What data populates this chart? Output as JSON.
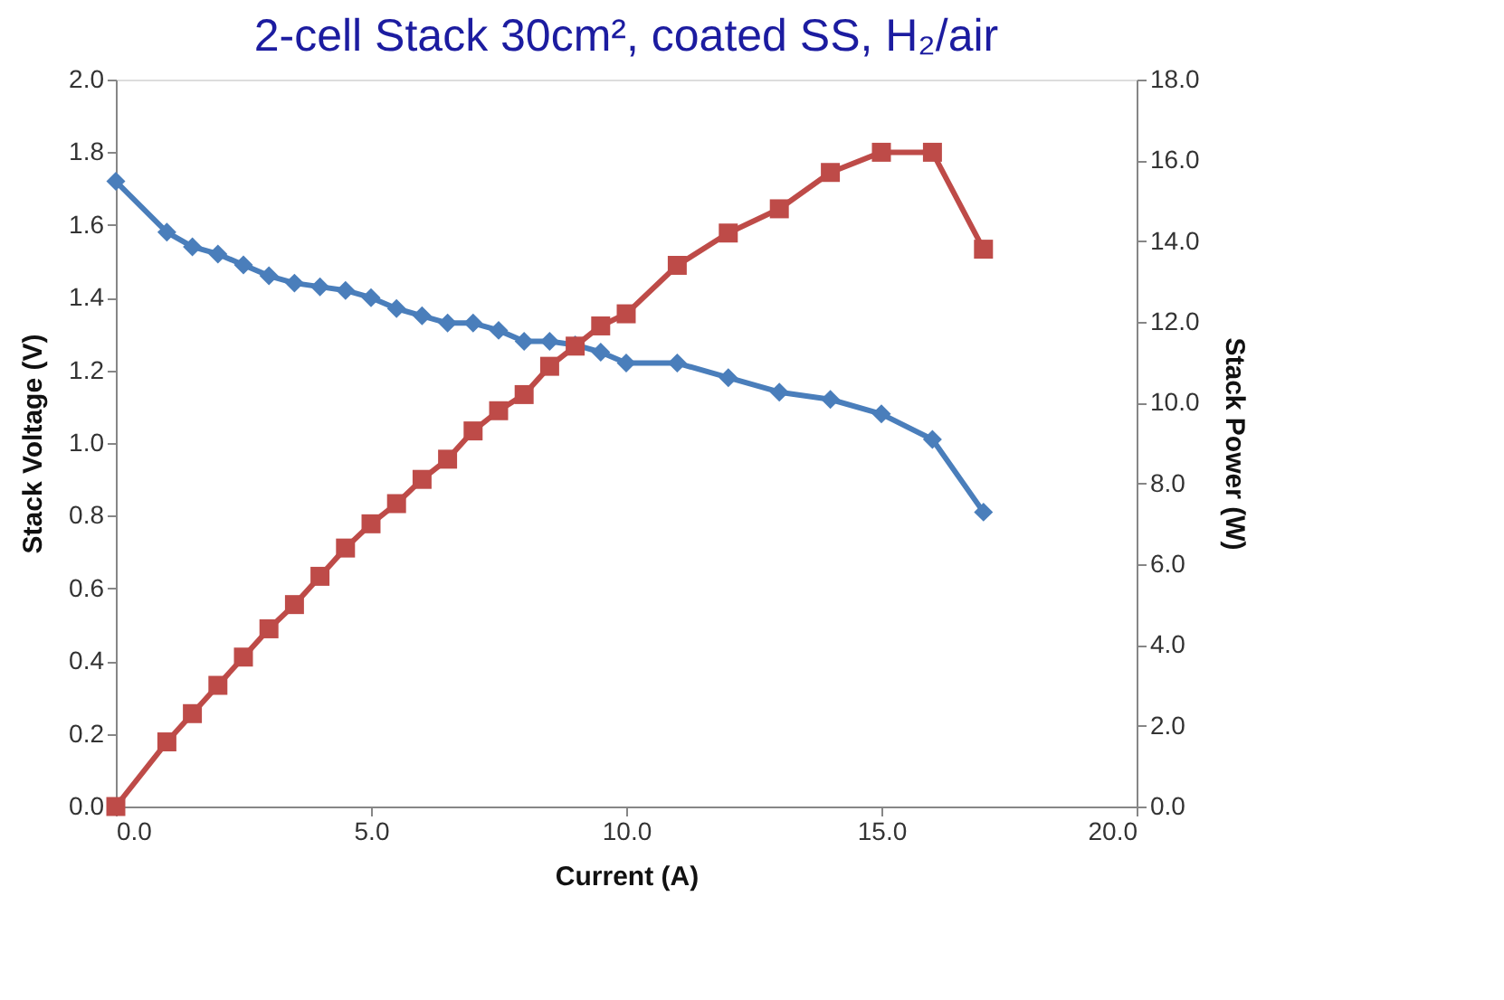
{
  "chart_data": {
    "type": "line",
    "title": "2-cell Stack  30cm², coated SS,  H₂/air",
    "xlabel": "Current  (A)",
    "ylabel": "Stack Voltage  (V)",
    "y2label": "Stack Power  (W)",
    "x": [
      0,
      1,
      1.5,
      2,
      2.5,
      3,
      3.5,
      4,
      4.5,
      5,
      5.5,
      6,
      6.5,
      7,
      7.5,
      8,
      8.5,
      9,
      9.5,
      10,
      11,
      12,
      13,
      14,
      15,
      16,
      17
    ],
    "series": [
      {
        "color": "#4a7ebb",
        "marker": "diamond",
        "values": [
          1.72,
          1.58,
          1.54,
          1.52,
          1.49,
          1.46,
          1.44,
          1.43,
          1.42,
          1.4,
          1.37,
          1.35,
          1.33,
          1.33,
          1.31,
          1.28,
          1.28,
          1.27,
          1.25,
          1.22,
          1.22,
          1.18,
          1.14,
          1.12,
          1.08,
          1.01,
          0.81
        ]
      },
      {
        "color": "#be4b48",
        "marker": "square",
        "axis": "y2",
        "values": [
          0,
          1.6,
          2.3,
          3.0,
          3.7,
          4.4,
          5.0,
          5.7,
          6.4,
          7.0,
          7.5,
          8.1,
          8.6,
          9.3,
          9.8,
          10.2,
          10.9,
          11.4,
          11.9,
          12.2,
          13.4,
          14.2,
          14.8,
          15.7,
          16.2,
          16.2,
          13.8
        ]
      }
    ],
    "xlim": [
      0,
      20
    ],
    "xticks": [
      {
        "value": 0,
        "label": "0.0"
      },
      {
        "value": 5,
        "label": "5.0"
      },
      {
        "value": 10,
        "label": "10.0"
      },
      {
        "value": 15,
        "label": "15.0"
      },
      {
        "value": 20,
        "label": "20.0"
      }
    ],
    "ylim": [
      0,
      2
    ],
    "yticks": [
      {
        "value": 0,
        "label": "0.0"
      },
      {
        "value": 0.2,
        "label": "0.2"
      },
      {
        "value": 0.4,
        "label": "0.4"
      },
      {
        "value": 0.6,
        "label": "0.6"
      },
      {
        "value": 0.8,
        "label": "0.8"
      },
      {
        "value": 1,
        "label": "1.0"
      },
      {
        "value": 1.2,
        "label": "1.2"
      },
      {
        "value": 1.4,
        "label": "1.4"
      },
      {
        "value": 1.6,
        "label": "1.6"
      },
      {
        "value": 1.8,
        "label": "1.8"
      },
      {
        "value": 2,
        "label": "2.0"
      }
    ],
    "y2lim": [
      0,
      18
    ],
    "y2ticks": [
      {
        "value": 0,
        "label": "0.0"
      },
      {
        "value": 2,
        "label": "2.0"
      },
      {
        "value": 4,
        "label": "4.0"
      },
      {
        "value": 6,
        "label": "6.0"
      },
      {
        "value": 8,
        "label": "8.0"
      },
      {
        "value": 10,
        "label": "10.0"
      },
      {
        "value": 12,
        "label": "12.0"
      },
      {
        "value": 14,
        "label": "14.0"
      },
      {
        "value": 16,
        "label": "16.0"
      },
      {
        "value": 18,
        "label": "18.0"
      }
    ],
    "grid": false,
    "line_style": "solid"
  }
}
